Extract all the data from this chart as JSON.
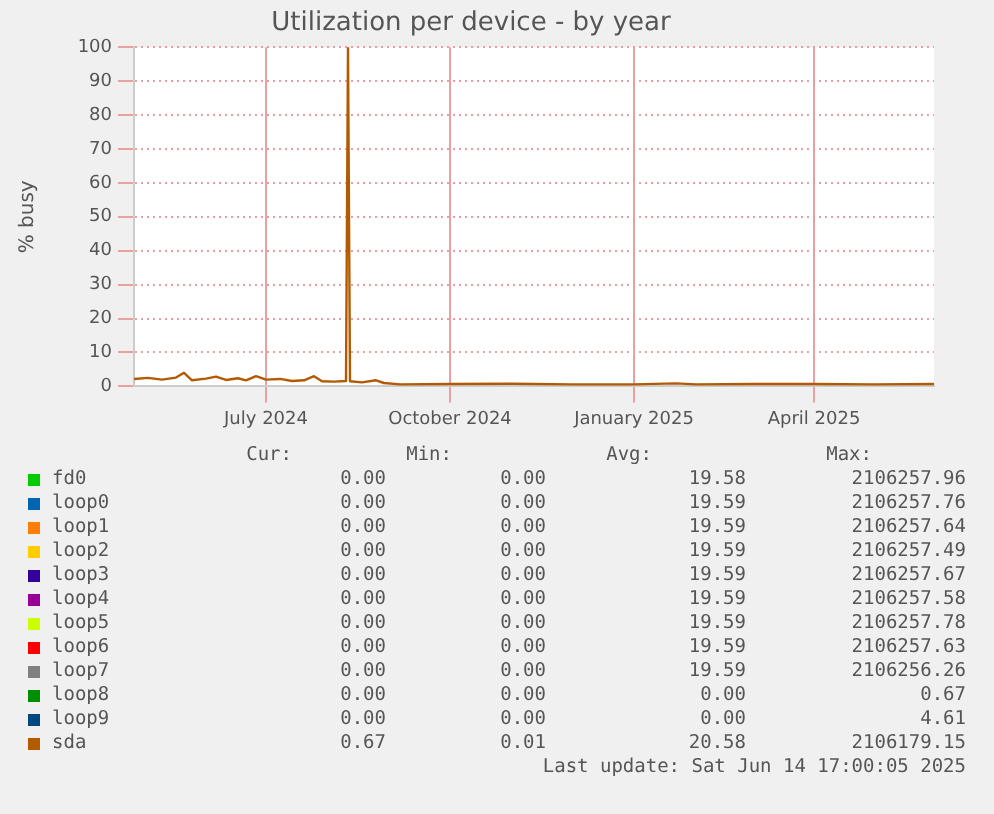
{
  "chart_data": {
    "type": "line",
    "title": "Utilization per device - by year",
    "ylabel": "% busy",
    "x": [
      "2024-05-10",
      "2024-05-17",
      "2024-05-24",
      "2024-05-31",
      "2024-06-04",
      "2024-06-08",
      "2024-06-15",
      "2024-06-20",
      "2024-06-25",
      "2024-07-01",
      "2024-07-05",
      "2024-07-10",
      "2024-07-15",
      "2024-07-22",
      "2024-07-28",
      "2024-08-03",
      "2024-08-08",
      "2024-08-12",
      "2024-08-18",
      "2024-08-24",
      "2024-08-25",
      "2024-08-26",
      "2024-09-01",
      "2024-09-08",
      "2024-09-12",
      "2024-09-20",
      "2024-10-15",
      "2024-11-15",
      "2024-12-15",
      "2025-01-15",
      "2025-02-05",
      "2025-02-15",
      "2025-03-15",
      "2025-04-15",
      "2025-05-15",
      "2025-06-14"
    ],
    "xlim": [
      "2024-05-10",
      "2025-06-14"
    ],
    "xticks": [
      {
        "value": "2024-07-15",
        "label": "July 2024"
      },
      {
        "value": "2024-10-15",
        "label": "October 2024"
      },
      {
        "value": "2025-01-15",
        "label": "January 2025"
      },
      {
        "value": "2025-04-15",
        "label": "April 2025"
      }
    ],
    "ylim": [
      0,
      100
    ],
    "yticks": [
      0,
      10,
      20,
      30,
      40,
      50,
      60,
      70,
      80,
      90,
      100
    ],
    "grid": true,
    "legend": "bottom",
    "marker": "none",
    "series": [
      {
        "name": "fd0",
        "color": "#00cc00",
        "values": [
          null,
          null,
          null,
          null,
          null,
          null,
          null,
          null,
          null,
          null,
          null,
          null,
          null,
          null,
          null,
          null,
          null,
          null,
          null,
          null,
          null,
          null,
          null,
          null,
          null,
          null,
          null,
          null,
          null,
          null,
          null,
          null,
          null,
          null,
          null,
          null
        ]
      },
      {
        "name": "loop0",
        "color": "#0066b3",
        "values": [
          null,
          null,
          null,
          null,
          null,
          null,
          null,
          null,
          null,
          null,
          null,
          null,
          null,
          null,
          null,
          null,
          null,
          null,
          null,
          null,
          null,
          null,
          null,
          null,
          null,
          null,
          null,
          null,
          null,
          null,
          null,
          null,
          null,
          null,
          null,
          null
        ]
      },
      {
        "name": "loop1",
        "color": "#ff8000",
        "values": [
          null,
          null,
          null,
          null,
          null,
          null,
          null,
          null,
          null,
          null,
          null,
          null,
          null,
          null,
          null,
          null,
          null,
          null,
          null,
          null,
          null,
          null,
          null,
          null,
          null,
          null,
          null,
          null,
          null,
          null,
          null,
          null,
          null,
          null,
          null,
          null
        ]
      },
      {
        "name": "loop2",
        "color": "#ffcc00",
        "values": [
          null,
          null,
          null,
          null,
          null,
          null,
          null,
          null,
          null,
          null,
          null,
          null,
          null,
          null,
          null,
          null,
          null,
          null,
          null,
          null,
          null,
          null,
          null,
          null,
          null,
          null,
          null,
          null,
          null,
          null,
          null,
          null,
          null,
          null,
          null,
          null
        ]
      },
      {
        "name": "loop3",
        "color": "#330099",
        "values": [
          null,
          null,
          null,
          null,
          null,
          null,
          null,
          null,
          null,
          null,
          null,
          null,
          null,
          null,
          null,
          null,
          null,
          null,
          null,
          null,
          null,
          null,
          null,
          null,
          null,
          null,
          null,
          null,
          null,
          null,
          null,
          null,
          null,
          null,
          null,
          null
        ]
      },
      {
        "name": "loop4",
        "color": "#990099",
        "values": [
          null,
          null,
          null,
          null,
          null,
          null,
          null,
          null,
          null,
          null,
          null,
          null,
          null,
          null,
          null,
          null,
          null,
          null,
          null,
          null,
          null,
          null,
          null,
          null,
          null,
          null,
          null,
          null,
          null,
          null,
          null,
          null,
          null,
          null,
          null,
          null
        ]
      },
      {
        "name": "loop5",
        "color": "#ccff00",
        "values": [
          null,
          null,
          null,
          null,
          null,
          null,
          null,
          null,
          null,
          null,
          null,
          null,
          null,
          null,
          null,
          null,
          null,
          null,
          null,
          null,
          null,
          null,
          null,
          null,
          null,
          null,
          null,
          null,
          null,
          null,
          null,
          null,
          null,
          null,
          null,
          null
        ]
      },
      {
        "name": "loop6",
        "color": "#ff0000",
        "values": [
          null,
          null,
          null,
          null,
          null,
          null,
          null,
          null,
          null,
          null,
          null,
          null,
          null,
          null,
          null,
          null,
          null,
          null,
          null,
          null,
          null,
          null,
          null,
          null,
          null,
          null,
          null,
          null,
          null,
          null,
          null,
          null,
          null,
          null,
          null,
          null
        ]
      },
      {
        "name": "loop7",
        "color": "#808080",
        "values": [
          null,
          null,
          null,
          null,
          null,
          null,
          null,
          null,
          null,
          null,
          null,
          null,
          null,
          null,
          null,
          null,
          null,
          null,
          null,
          null,
          null,
          null,
          null,
          null,
          null,
          null,
          null,
          null,
          null,
          null,
          null,
          null,
          null,
          null,
          null,
          null
        ]
      },
      {
        "name": "loop8",
        "color": "#008f00",
        "values": [
          null,
          null,
          null,
          null,
          null,
          null,
          null,
          null,
          null,
          null,
          null,
          null,
          null,
          null,
          null,
          null,
          null,
          null,
          null,
          null,
          null,
          null,
          null,
          null,
          null,
          null,
          null,
          null,
          null,
          null,
          null,
          null,
          null,
          null,
          null,
          null
        ]
      },
      {
        "name": "loop9",
        "color": "#00487d",
        "values": [
          null,
          null,
          null,
          null,
          null,
          null,
          null,
          null,
          null,
          null,
          null,
          null,
          null,
          null,
          null,
          null,
          null,
          null,
          null,
          null,
          null,
          null,
          null,
          null,
          null,
          null,
          null,
          null,
          null,
          null,
          null,
          null,
          null,
          null,
          null,
          null
        ]
      },
      {
        "name": "sda",
        "color": "#b35a00",
        "values": [
          2.2,
          2.5,
          2.0,
          2.6,
          4.0,
          1.8,
          2.3,
          2.9,
          1.9,
          2.4,
          1.8,
          3.0,
          2.0,
          2.2,
          1.6,
          1.8,
          3.0,
          1.5,
          1.4,
          1.6,
          100,
          1.5,
          1.2,
          1.8,
          1.0,
          0.6,
          0.7,
          0.8,
          0.6,
          0.6,
          0.9,
          0.6,
          0.7,
          0.7,
          0.6,
          0.7
        ]
      }
    ],
    "annotations": [
      "Cur:",
      "Min:",
      "Avg:",
      "Max:",
      "0.00",
      "0.00",
      "19.58",
      "2106257.96",
      "0.00",
      "0.00",
      "19.59",
      "2106257.76",
      "0.00",
      "0.00",
      "19.59",
      "2106257.64",
      "0.00",
      "0.00",
      "19.59",
      "2106257.49",
      "0.00",
      "0.00",
      "19.59",
      "2106257.67",
      "0.00",
      "0.00",
      "19.59",
      "2106257.58",
      "0.00",
      "0.00",
      "19.59",
      "2106257.78",
      "0.00",
      "0.00",
      "19.59",
      "2106257.63",
      "0.00",
      "0.00",
      "19.59",
      "2106256.26",
      "0.00",
      "0.00",
      "0.00",
      "0.67",
      "0.00",
      "0.00",
      "0.00",
      "4.61",
      "0.67",
      "0.01",
      "20.58",
      "2106179.15",
      "Last update: Sat Jun 14 17:00:05 2025"
    ]
  }
}
